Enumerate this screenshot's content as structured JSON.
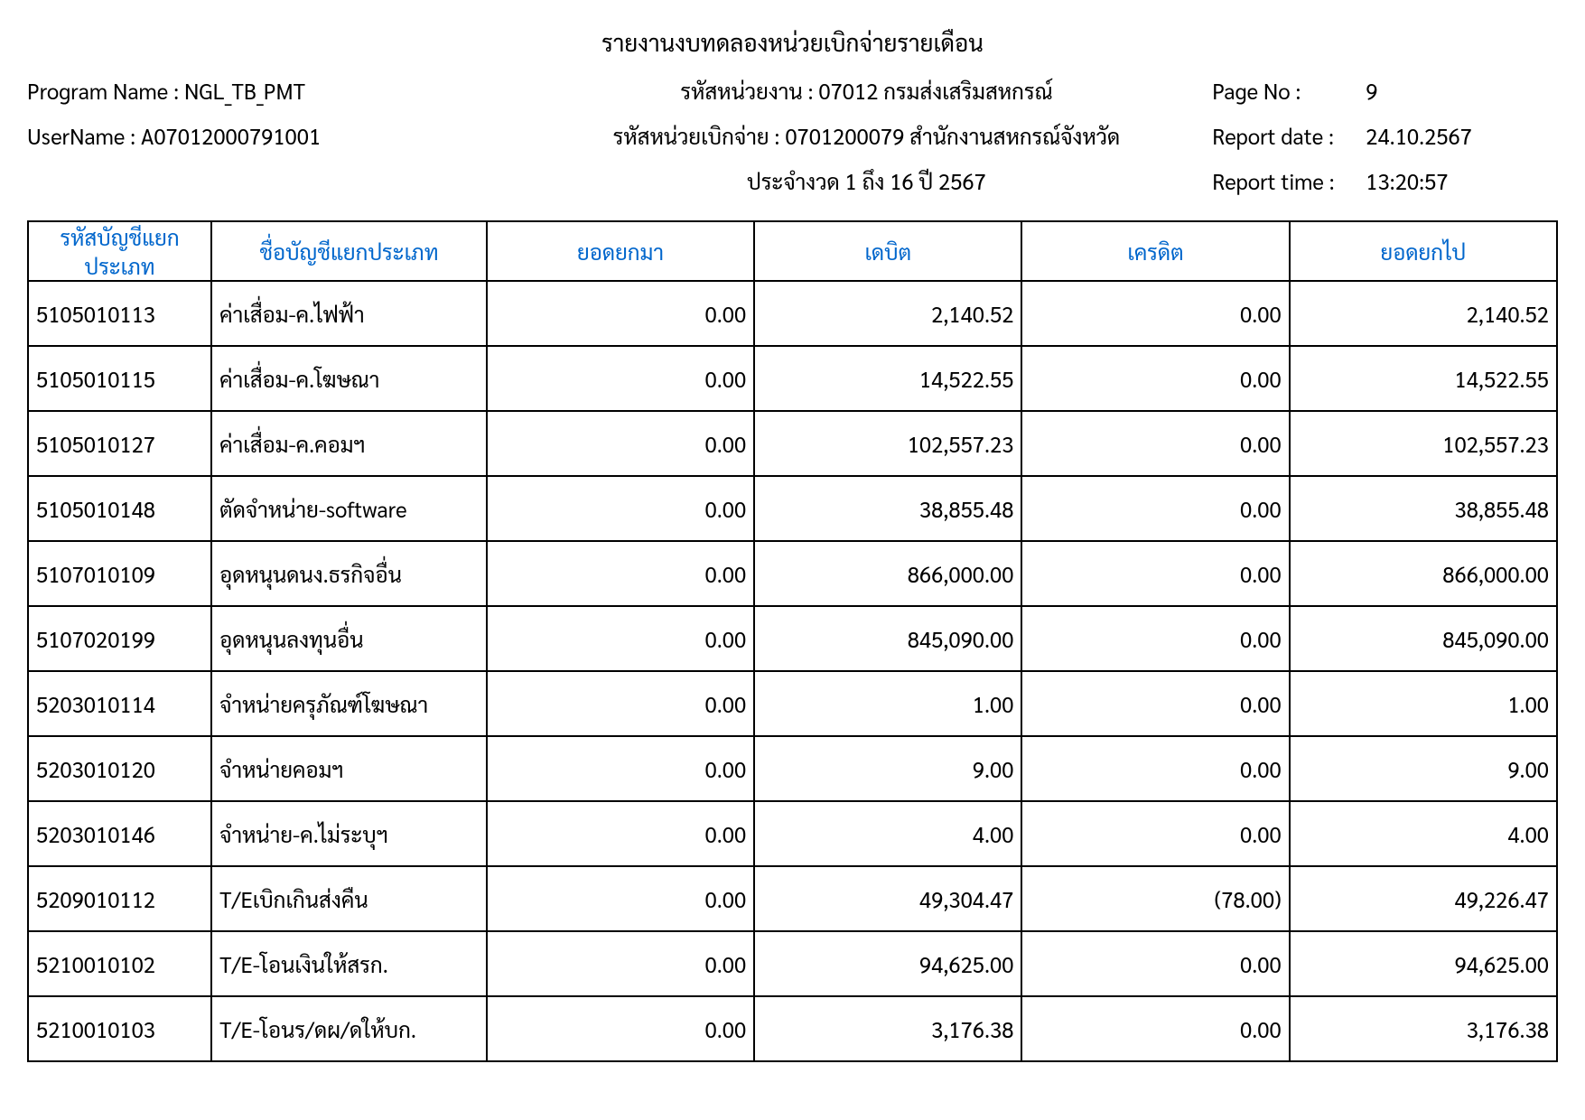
{
  "report": {
    "title": "รายงานงบทดลองหน่วยเบิกจ่ายรายเดือน",
    "program_name_label": "Program Name : NGL_TB_PMT",
    "agency_code": "รหัสหน่วยงาน : 07012 กรมส่งเสริมสหกรณ์",
    "page_no_label": "Page No :",
    "page_no_value": "9",
    "user_name_label": "UserName : A07012000791001",
    "disburse_code": "รหัสหน่วยเบิกจ่าย : 0701200079 สำนักงานสหกรณ์จังหวัด",
    "report_date_label": "Report date :",
    "report_date_value": "24.10.2567",
    "period": "ประจำงวด 1 ถึง 16 ปี 2567",
    "report_time_label": "Report time :",
    "report_time_value": "13:20:57"
  },
  "table": {
    "columns": [
      "รหัสบัญชีแยกประเภท",
      "ชื่อบัญชีแยกประเภท",
      "ยอดยกมา",
      "เดบิต",
      "เครดิต",
      "ยอดยกไป"
    ],
    "rows": [
      [
        "5105010113",
        "ค่าเสื่อม-ค.ไฟฟ้า",
        "0.00",
        "2,140.52",
        "0.00",
        "2,140.52"
      ],
      [
        "5105010115",
        "ค่าเสื่อม-ค.โฆษณา",
        "0.00",
        "14,522.55",
        "0.00",
        "14,522.55"
      ],
      [
        "5105010127",
        "ค่าเสื่อม-ค.คอมฯ",
        "0.00",
        "102,557.23",
        "0.00",
        "102,557.23"
      ],
      [
        "5105010148",
        "ตัดจำหน่าย-software",
        "0.00",
        "38,855.48",
        "0.00",
        "38,855.48"
      ],
      [
        "5107010109",
        "อุดหนุนดนง.ธรกิจอื่น",
        "0.00",
        "866,000.00",
        "0.00",
        "866,000.00"
      ],
      [
        "5107020199",
        "อุดหนุนลงทุนอื่น",
        "0.00",
        "845,090.00",
        "0.00",
        "845,090.00"
      ],
      [
        "5203010114",
        "จำหน่ายครุภัณฑ์โฆษณา",
        "0.00",
        "1.00",
        "0.00",
        "1.00"
      ],
      [
        "5203010120",
        "จำหน่ายคอมฯ",
        "0.00",
        "9.00",
        "0.00",
        "9.00"
      ],
      [
        "5203010146",
        "จำหน่าย-ค.ไม่ระบุฯ",
        "0.00",
        "4.00",
        "0.00",
        "4.00"
      ],
      [
        "5209010112",
        "T/Eเบิกเกินส่งคืน",
        "0.00",
        "49,304.47",
        "(78.00)",
        "49,226.47"
      ],
      [
        "5210010102",
        "T/E-โอนเงินให้สรก.",
        "0.00",
        "94,625.00",
        "0.00",
        "94,625.00"
      ],
      [
        "5210010103",
        "T/E-โอนร/ดผ/ดให้บก.",
        "0.00",
        "3,176.38",
        "0.00",
        "3,176.38"
      ]
    ],
    "column_align": [
      "left",
      "left",
      "right",
      "right",
      "right",
      "right"
    ],
    "header_color": "#0066cc",
    "border_color": "#000000"
  }
}
